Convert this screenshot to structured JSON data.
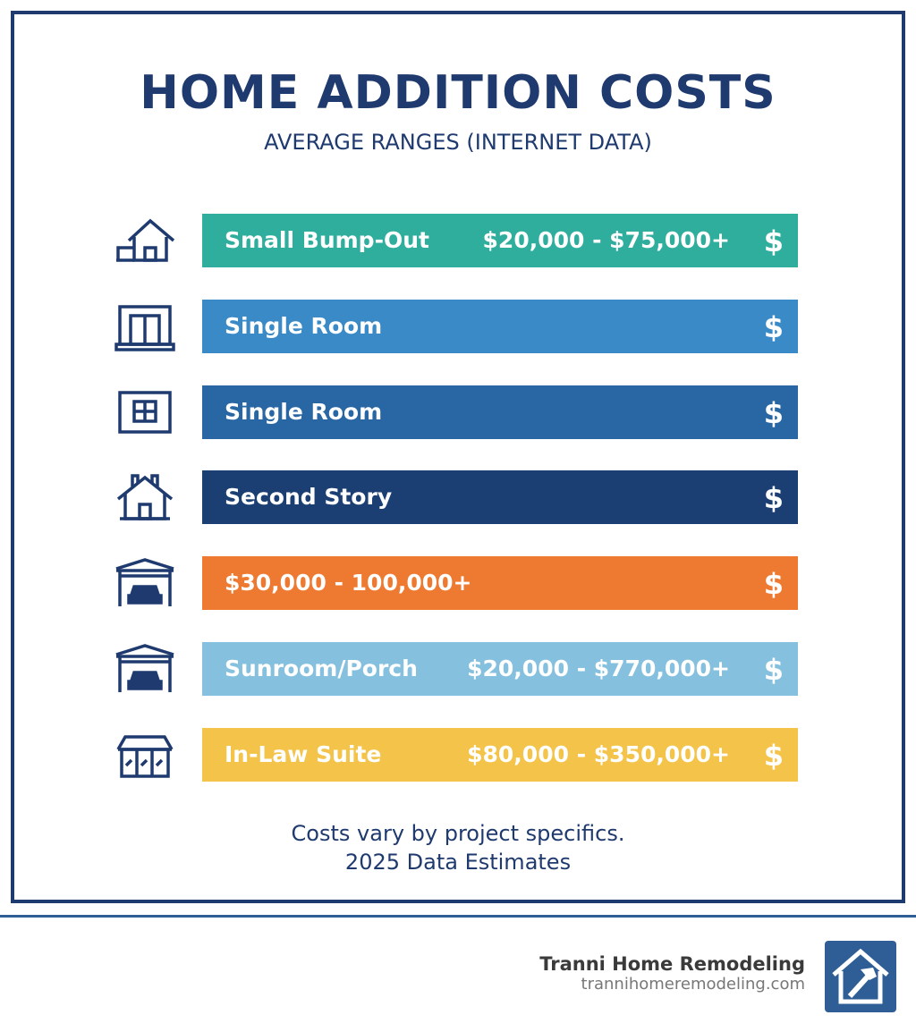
{
  "header": {
    "title": "HOME ADDITION COSTS",
    "subtitle": "AVERAGE RANGES (INTERNET DATA)"
  },
  "rows": [
    {
      "icon": "house-bump-out-icon",
      "label": "Small Bump-Out",
      "range": "$20,000 - $75,000+",
      "symbol": "$",
      "color": "#2fae9e"
    },
    {
      "icon": "room-door-icon",
      "label": "Single Room",
      "range": "",
      "symbol": "$",
      "color": "#3a8ac8"
    },
    {
      "icon": "window-room-icon",
      "label": "Single Room",
      "range": "",
      "symbol": "$",
      "color": "#2866a4"
    },
    {
      "icon": "house-chimney-icon",
      "label": "Second Story",
      "range": "",
      "symbol": "$",
      "color": "#1c3f73"
    },
    {
      "icon": "garage-car-icon",
      "label": "$30,000 - 100,000+",
      "range": "",
      "symbol": "$",
      "color": "#ee7a32"
    },
    {
      "icon": "carport-car-icon",
      "label": "Sunroom/Porch",
      "range": "$20,000 - $770,000+",
      "symbol": "$",
      "color": "#85c0de"
    },
    {
      "icon": "sunroom-icon",
      "label": "In-Law Suite",
      "range": "$80,000 - $350,000+",
      "symbol": "$",
      "color": "#f4c34a"
    }
  ],
  "footer": {
    "note": "Costs vary by project specifics.",
    "estimate": "2025 Data Estimates"
  },
  "brand": {
    "name": "Tranni Home Remodeling",
    "url": "trannihomeremodeling.com",
    "logo_icon": "house-hammer-icon"
  }
}
